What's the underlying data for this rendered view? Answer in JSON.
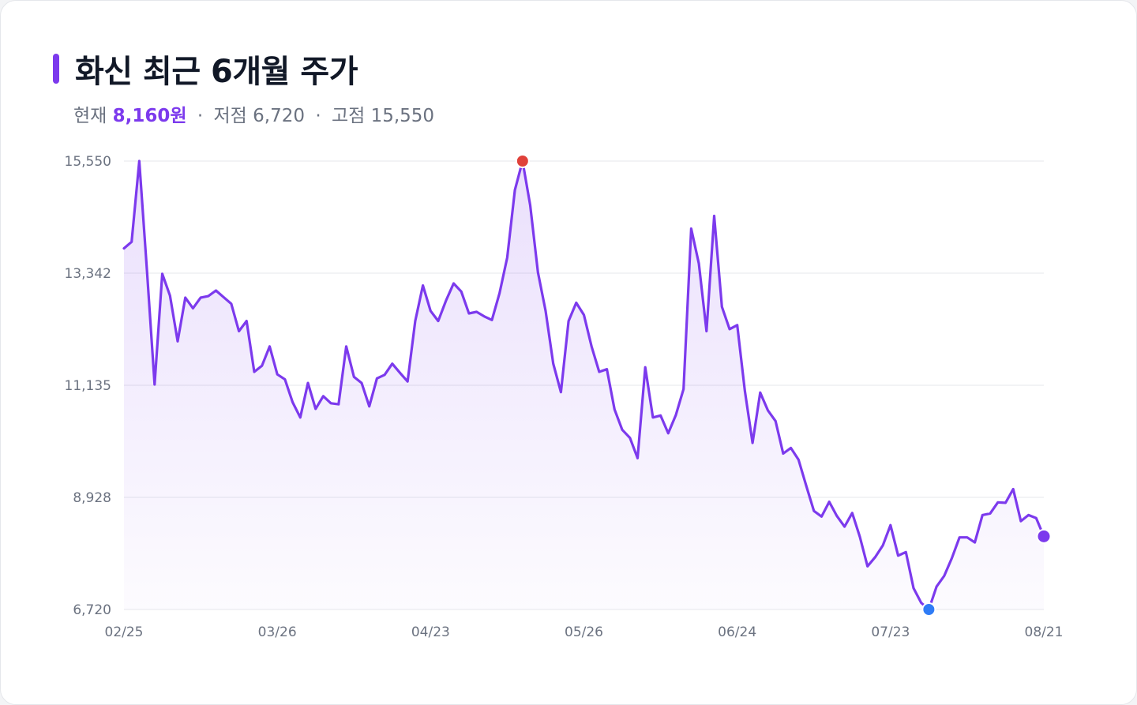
{
  "title": "화신 최근 6개월 주가",
  "summary": {
    "current_label": "현재",
    "current_value": "8,160원",
    "low_label": "저점",
    "low_value": "6,720",
    "high_label": "고점",
    "high_value": "15,550",
    "separator": "·"
  },
  "colors": {
    "line": "#7c3aed",
    "high_marker": "#e0413a",
    "low_marker": "#2f7cf6",
    "current_marker": "#7c3aed"
  },
  "chart_data": {
    "type": "area",
    "title": "화신 최근 6개월 주가",
    "xlabel": "",
    "ylabel": "",
    "ylim": [
      6720,
      15550
    ],
    "y_ticks": [
      "15,550",
      "13,342",
      "11,135",
      "8,928",
      "6,720"
    ],
    "y_tick_values": [
      15550,
      13342,
      11135,
      8928,
      6720
    ],
    "x_ticks": [
      "02/25",
      "03/26",
      "04/23",
      "05/26",
      "06/24",
      "07/23",
      "08/21"
    ],
    "x_tick_index": [
      0,
      20,
      40,
      60,
      80,
      100,
      120
    ],
    "grid": true,
    "markers": {
      "high_index": 52,
      "low_index": 105,
      "current_index": 120
    },
    "values": [
      13830,
      13960,
      15550,
      13400,
      11150,
      13330,
      12900,
      12000,
      12860,
      12650,
      12860,
      12890,
      13000,
      12870,
      12740,
      12200,
      12400,
      11400,
      11520,
      11900,
      11350,
      11250,
      10800,
      10500,
      11180,
      10670,
      10920,
      10780,
      10760,
      11900,
      11300,
      11180,
      10720,
      11270,
      11340,
      11560,
      11380,
      11210,
      12400,
      13100,
      12600,
      12400,
      12800,
      13140,
      12980,
      12550,
      12580,
      12490,
      12420,
      12950,
      13650,
      14980,
      15550,
      14680,
      13360,
      12600,
      11560,
      11000,
      12400,
      12760,
      12520,
      11900,
      11400,
      11450,
      10660,
      10260,
      10100,
      9700,
      11490,
      10500,
      10540,
      10190,
      10550,
      11060,
      14220,
      13530,
      12200,
      14470,
      12680,
      12240,
      12320,
      11020,
      10000,
      10990,
      10640,
      10430,
      9790,
      9900,
      9670,
      9160,
      8660,
      8550,
      8840,
      8560,
      8350,
      8620,
      8150,
      7570,
      7750,
      7980,
      8380,
      7780,
      7850,
      7140,
      6850,
      6720,
      7170,
      7380,
      7730,
      8140,
      8140,
      8040,
      8580,
      8610,
      8830,
      8820,
      9090,
      8460,
      8580,
      8520,
      8160
    ]
  }
}
